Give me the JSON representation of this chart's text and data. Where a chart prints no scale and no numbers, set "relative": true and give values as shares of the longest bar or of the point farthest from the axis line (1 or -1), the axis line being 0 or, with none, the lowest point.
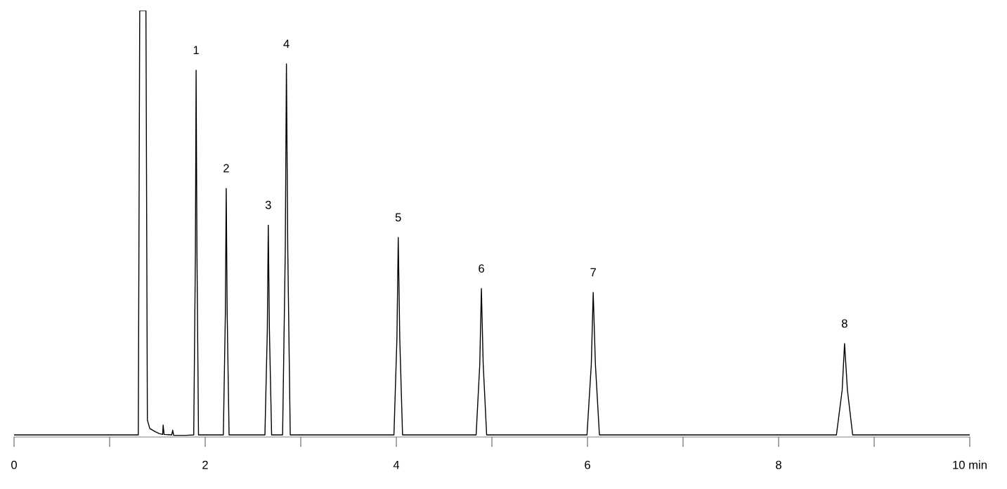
{
  "chart_data": {
    "type": "line",
    "relative": true,
    "xlim": [
      0,
      10
    ],
    "xticks": [
      0,
      {
        "value": 1,
        "label": null
      },
      2,
      {
        "value": 3,
        "label": null
      },
      4,
      {
        "value": 5,
        "label": null
      },
      6,
      {
        "value": 7,
        "label": null
      },
      8,
      {
        "value": 9,
        "label": null
      },
      {
        "value": 10,
        "label": "10 min"
      }
    ],
    "series": [
      {
        "color": "#000000",
        "x": [
          0,
          1.3,
          1.315,
          1.38,
          1.395,
          1.42,
          1.48,
          1.52,
          1.555,
          1.56,
          1.57,
          1.65,
          1.66,
          1.67,
          1.8,
          1.88,
          1.8975,
          1.905,
          1.914,
          1.93,
          2.19,
          2.211,
          2.22,
          2.23,
          2.25,
          2.625,
          2.65,
          2.66,
          2.672,
          2.695,
          2.81,
          2.838,
          2.85,
          2.864,
          2.89,
          3.975,
          4.006,
          4.02,
          4.036,
          4.065,
          4.835,
          4.873,
          4.89,
          4.909,
          4.945,
          5.995,
          6.04,
          6.06,
          6.083,
          6.125,
          8.605,
          8.665,
          8.69,
          8.72,
          8.775,
          10
        ],
        "values": [
          0.005,
          0.005,
          1,
          1,
          0.04,
          0.02,
          0.012,
          0.008,
          0.006,
          0.028,
          0.006,
          0.005,
          0.016,
          0.004,
          0.004,
          0.005,
          0.43,
          0.86,
          0.43,
          0.005,
          0.005,
          0.29,
          0.583,
          0.29,
          0.005,
          0.005,
          0.25,
          0.497,
          0.25,
          0.005,
          0.005,
          0.44,
          0.875,
          0.44,
          0.005,
          0.005,
          0.23,
          0.468,
          0.23,
          0.005,
          0.005,
          0.17,
          0.348,
          0.17,
          0.005,
          0.005,
          0.17,
          0.339,
          0.17,
          0.005,
          0.005,
          0.11,
          0.219,
          0.11,
          0.005,
          0.005
        ]
      }
    ],
    "annotations": [
      {
        "text": "1",
        "x": 1.905,
        "y": 0.86
      },
      {
        "text": "2",
        "x": 2.22,
        "y": 0.583
      },
      {
        "text": "3",
        "x": 2.66,
        "y": 0.497
      },
      {
        "text": "4",
        "x": 2.85,
        "y": 0.875
      },
      {
        "text": "5",
        "x": 4.02,
        "y": 0.468
      },
      {
        "text": "6",
        "x": 4.89,
        "y": 0.348
      },
      {
        "text": "7",
        "x": 6.06,
        "y": 0.339
      },
      {
        "text": "8",
        "x": 8.69,
        "y": 0.219
      }
    ]
  }
}
